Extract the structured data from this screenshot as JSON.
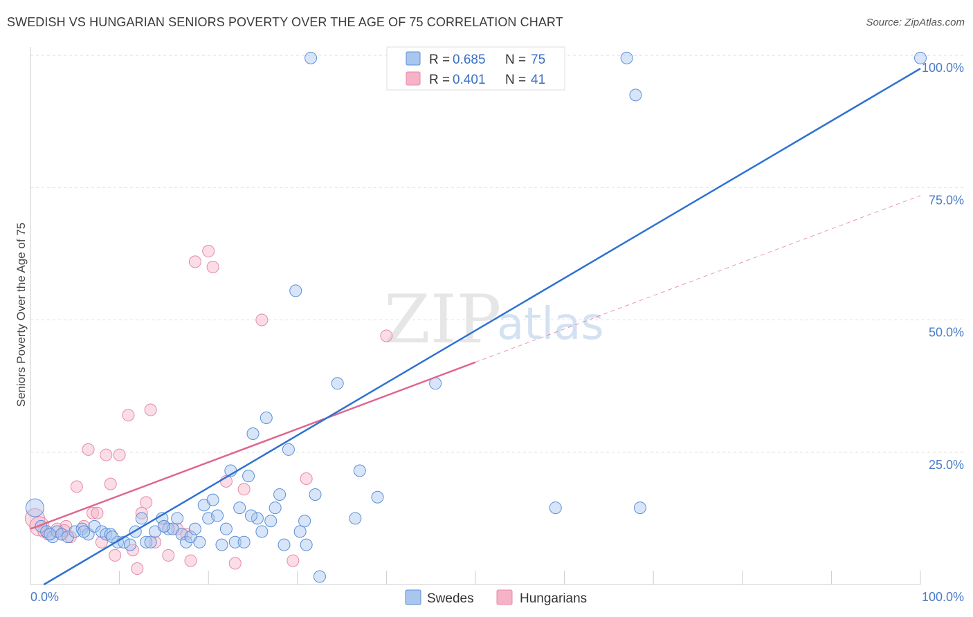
{
  "header": {
    "title": "SWEDISH VS HUNGARIAN SENIORS POVERTY OVER THE AGE OF 75 CORRELATION CHART",
    "source": "Source: ZipAtlas.com"
  },
  "watermark": {
    "zip": "ZIP",
    "atlas": "atlas"
  },
  "legend": {
    "rows": [
      {
        "r_label": "R =",
        "r_value": "0.685",
        "n_label": "N =",
        "n_value": "75",
        "color": "#a9c6ef"
      },
      {
        "r_label": "R =",
        "r_value": "0.401",
        "n_label": "N =",
        "n_value": "41",
        "color": "#f6b3c8"
      }
    ]
  },
  "colors": {
    "swedes_fill": "#a9c6ef",
    "swedes_stroke": "#5b8fd6",
    "swedes_line": "#2e72d2",
    "hungarians_fill": "#f6b3c8",
    "hungarians_stroke": "#e58aa8",
    "hungarians_line": "#e0668f",
    "grid": "#dcdcdc",
    "axis_text": "#4a7cc7"
  },
  "chart_data": {
    "type": "scatter",
    "title": "SWEDISH VS HUNGARIAN SENIORS POVERTY OVER THE AGE OF 75 CORRELATION CHART",
    "xlabel": "",
    "ylabel": "Seniors Poverty Over the Age of 75",
    "xlim": [
      0,
      100
    ],
    "ylim": [
      0,
      100
    ],
    "x_tick_labels": [
      "0.0%",
      "100.0%"
    ],
    "y_tick_labels": [
      "25.0%",
      "50.0%",
      "75.0%",
      "100.0%"
    ],
    "y_ticks": [
      25,
      50,
      75,
      100
    ],
    "grid": true,
    "legend_position": "top-center",
    "series": [
      {
        "name": "Swedes",
        "r": 0.685,
        "n": 75,
        "trend": {
          "x": [
            0,
            100
          ],
          "y": [
            -1.5,
            97.5
          ],
          "style": "solid"
        },
        "points": [
          [
            0.5,
            14.5
          ],
          [
            1.2,
            11
          ],
          [
            1.8,
            10
          ],
          [
            2.5,
            9
          ],
          [
            3,
            10
          ],
          [
            3.5,
            9.5
          ],
          [
            4.2,
            9
          ],
          [
            5,
            10
          ],
          [
            5.8,
            10.5
          ],
          [
            6.5,
            9.5
          ],
          [
            7.2,
            11
          ],
          [
            8,
            10
          ],
          [
            8.5,
            9.5
          ],
          [
            9,
            9.5
          ],
          [
            9.8,
            8
          ],
          [
            10.5,
            8
          ],
          [
            11.2,
            7.5
          ],
          [
            11.8,
            10
          ],
          [
            12.5,
            12.5
          ],
          [
            13,
            8
          ],
          [
            13.5,
            8
          ],
          [
            14,
            10
          ],
          [
            14.8,
            12.5
          ],
          [
            15.5,
            10.5
          ],
          [
            16,
            10.5
          ],
          [
            16.5,
            12.5
          ],
          [
            17,
            9.5
          ],
          [
            17.5,
            8
          ],
          [
            18,
            9
          ],
          [
            18.5,
            10.5
          ],
          [
            19,
            8
          ],
          [
            19.5,
            15
          ],
          [
            20,
            12.5
          ],
          [
            20.5,
            16
          ],
          [
            21,
            13
          ],
          [
            21.5,
            7.5
          ],
          [
            22,
            10.5
          ],
          [
            22.5,
            21.5
          ],
          [
            23,
            8
          ],
          [
            23.5,
            14.5
          ],
          [
            24,
            8
          ],
          [
            24.5,
            20.5
          ],
          [
            25,
            28.5
          ],
          [
            25.5,
            12.5
          ],
          [
            26,
            10
          ],
          [
            26.5,
            31.5
          ],
          [
            27,
            12
          ],
          [
            27.5,
            14.5
          ],
          [
            28,
            17
          ],
          [
            28.5,
            7.5
          ],
          [
            29,
            25.5
          ],
          [
            29.8,
            55.5
          ],
          [
            30.3,
            10
          ],
          [
            31,
            7.5
          ],
          [
            31.5,
            99.5
          ],
          [
            32,
            17
          ],
          [
            32.5,
            1.5
          ],
          [
            34.5,
            38
          ],
          [
            36.5,
            12.5
          ],
          [
            37,
            21.5
          ],
          [
            39,
            16.5
          ],
          [
            45,
            99.5
          ],
          [
            45.5,
            38
          ],
          [
            51,
            99.5
          ],
          [
            59,
            14.5
          ],
          [
            67,
            99.5
          ],
          [
            68,
            92.5
          ],
          [
            68.5,
            14.5
          ],
          [
            100,
            99.5
          ],
          [
            2.2,
            9.5
          ],
          [
            6,
            10
          ],
          [
            9.2,
            9
          ],
          [
            15,
            11
          ],
          [
            24.8,
            13
          ],
          [
            30.8,
            12
          ]
        ]
      },
      {
        "name": "Hungarians",
        "r": 0.401,
        "n": 41,
        "trend": {
          "x": [
            0,
            100
          ],
          "y": [
            10.5,
            73.5
          ],
          "solid_until_x": 50
        },
        "points": [
          [
            0.5,
            12.5
          ],
          [
            1,
            11
          ],
          [
            1.5,
            10
          ],
          [
            2,
            9.5
          ],
          [
            3,
            10.5
          ],
          [
            3.5,
            9.5
          ],
          [
            4,
            11
          ],
          [
            4.5,
            9
          ],
          [
            5.2,
            18.5
          ],
          [
            6,
            11
          ],
          [
            6.5,
            25.5
          ],
          [
            7,
            13.5
          ],
          [
            7.5,
            13.5
          ],
          [
            8,
            8
          ],
          [
            8.5,
            24.5
          ],
          [
            9,
            19
          ],
          [
            9.5,
            5.5
          ],
          [
            10,
            24.5
          ],
          [
            11,
            32
          ],
          [
            11.5,
            6.5
          ],
          [
            12,
            3
          ],
          [
            12.5,
            13.5
          ],
          [
            13,
            15.5
          ],
          [
            13.5,
            33
          ],
          [
            14,
            8
          ],
          [
            15,
            11
          ],
          [
            15.5,
            5.5
          ],
          [
            16.5,
            10.5
          ],
          [
            17.5,
            9.5
          ],
          [
            18,
            4.5
          ],
          [
            18.5,
            61
          ],
          [
            20,
            63
          ],
          [
            20.5,
            60
          ],
          [
            22,
            19.5
          ],
          [
            23,
            4
          ],
          [
            24,
            18
          ],
          [
            26,
            50
          ],
          [
            29.5,
            4.5
          ],
          [
            31,
            20
          ],
          [
            40,
            47
          ],
          [
            3.8,
            10.2
          ]
        ]
      }
    ]
  },
  "bottom_legend": {
    "items": [
      {
        "label": "Swedes"
      },
      {
        "label": "Hungarians"
      }
    ]
  }
}
